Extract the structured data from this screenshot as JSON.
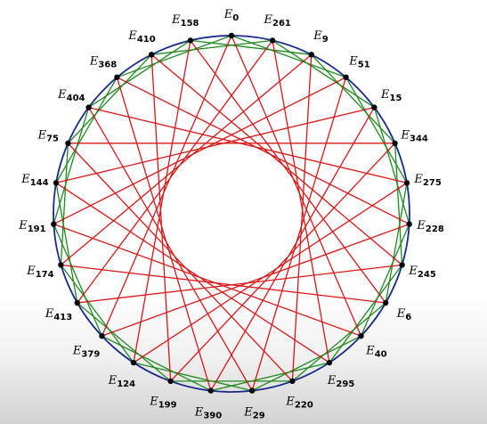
{
  "diagram": {
    "base_letter": "E",
    "vertices": [
      "0",
      "261",
      "9",
      "51",
      "15",
      "344",
      "275",
      "228",
      "245",
      "6",
      "40",
      "295",
      "220",
      "29",
      "390",
      "199",
      "124",
      "379",
      "413",
      "174",
      "191",
      "144",
      "75",
      "404",
      "368",
      "410",
      "158"
    ],
    "colors": {
      "circle": "#1a2a8c",
      "red": "#d81818",
      "green": "#1e8a1e",
      "vertex": "#000000"
    },
    "edges": {
      "red": [
        [
          0,
          10
        ],
        [
          0,
          17
        ],
        [
          1,
          11
        ],
        [
          1,
          18
        ],
        [
          2,
          12
        ],
        [
          2,
          19
        ],
        [
          3,
          13
        ],
        [
          3,
          20
        ],
        [
          4,
          14
        ],
        [
          4,
          21
        ],
        [
          5,
          15
        ],
        [
          5,
          22
        ],
        [
          6,
          16
        ],
        [
          6,
          23
        ],
        [
          7,
          17
        ],
        [
          7,
          24
        ],
        [
          8,
          18
        ],
        [
          8,
          25
        ],
        [
          9,
          19
        ],
        [
          9,
          26
        ],
        [
          10,
          20
        ],
        [
          11,
          21
        ],
        [
          12,
          22
        ],
        [
          13,
          23
        ],
        [
          14,
          24
        ],
        [
          15,
          25
        ],
        [
          16,
          26
        ]
      ],
      "green": [
        [
          0,
          3
        ],
        [
          1,
          4
        ],
        [
          2,
          5
        ],
        [
          3,
          6
        ],
        [
          4,
          7
        ],
        [
          5,
          8
        ],
        [
          6,
          9
        ],
        [
          7,
          10
        ],
        [
          8,
          11
        ],
        [
          9,
          12
        ],
        [
          10,
          13
        ],
        [
          11,
          14
        ],
        [
          12,
          15
        ],
        [
          13,
          16
        ],
        [
          14,
          17
        ],
        [
          15,
          18
        ],
        [
          16,
          19
        ],
        [
          17,
          20
        ],
        [
          18,
          21
        ],
        [
          19,
          22
        ],
        [
          20,
          23
        ],
        [
          21,
          24
        ],
        [
          22,
          25
        ],
        [
          23,
          26
        ],
        [
          24,
          0
        ],
        [
          25,
          1
        ],
        [
          26,
          2
        ]
      ]
    }
  }
}
